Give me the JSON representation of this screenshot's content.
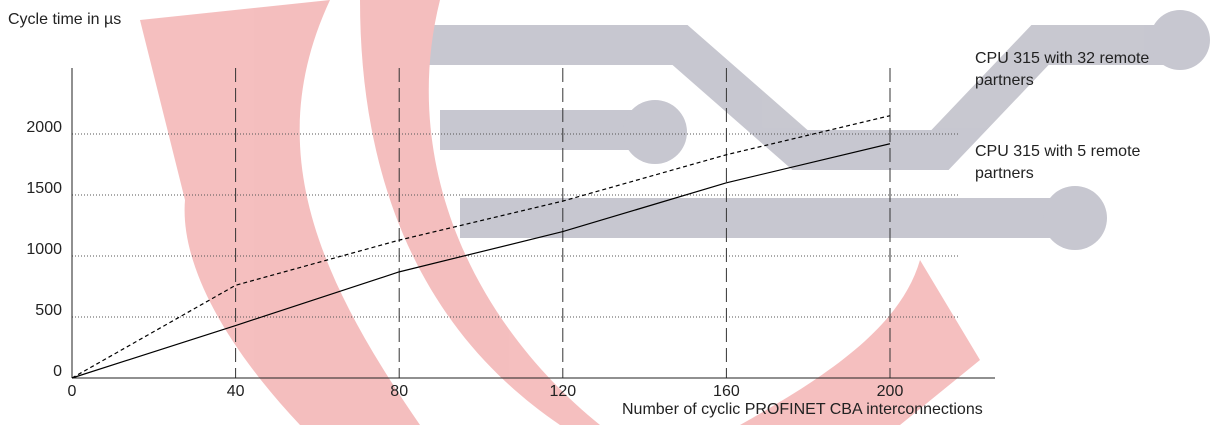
{
  "chart_data": {
    "type": "line",
    "y_label": "Cycle time in µs",
    "x_label": "Number of cyclic PROFINET CBA interconnections",
    "x": [
      0,
      40,
      80,
      120,
      160,
      200
    ],
    "series": [
      {
        "name": "CPU 315 with 32 remote partners",
        "color": "#000000",
        "line_style": "dashed",
        "values": [
          0,
          760,
          1130,
          1450,
          1830,
          2150
        ]
      },
      {
        "name": "CPU 315 with 5 remote partners",
        "color": "#000000",
        "line_style": "solid",
        "values": [
          0,
          430,
          870,
          1200,
          1600,
          1920
        ]
      }
    ],
    "xlim": [
      0,
      200
    ],
    "xticks": [
      0,
      40,
      80,
      120,
      160,
      200
    ],
    "ylim": [
      0,
      2000
    ],
    "yticks": [
      0,
      500,
      1000,
      1500,
      2000
    ],
    "grid": true
  }
}
